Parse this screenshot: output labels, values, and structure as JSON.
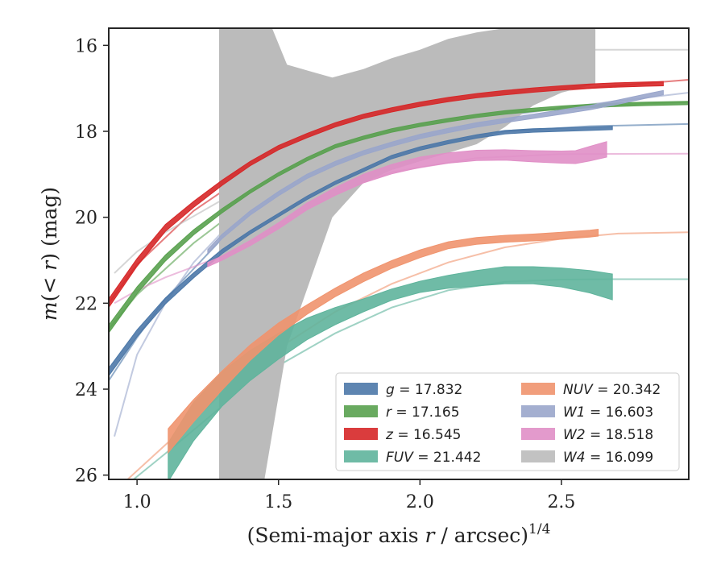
{
  "chart_data": {
    "type": "line",
    "xlabel": "(Semi-major axis r / arcsec)^{1/4}",
    "ylabel": "m(< r) (mag)",
    "xlim": [
      0.9,
      2.95
    ],
    "ylim": [
      26.1,
      15.6
    ],
    "y_inverted": true,
    "x_ticks": [
      "1.0",
      "1.5",
      "2.0",
      "2.5"
    ],
    "y_ticks": [
      "16",
      "18",
      "20",
      "22",
      "24",
      "26"
    ],
    "grid": false,
    "legend_position": "lower-right",
    "series": [
      {
        "name": "g = 17.832",
        "legend_name": "g",
        "legend_value": "17.832",
        "color": "#4C78A8",
        "ext_x": [
          0.9,
          1.0,
          1.1,
          1.3,
          1.5,
          1.7,
          1.9,
          2.1,
          2.3,
          2.6,
          2.95
        ],
        "ext_y": [
          23.8,
          22.8,
          21.9,
          20.5,
          19.6,
          19.0,
          18.5,
          18.2,
          18.0,
          17.88,
          17.83
        ],
        "x": [
          0.9,
          1.0,
          1.1,
          1.2,
          1.3,
          1.4,
          1.5,
          1.6,
          1.7,
          1.8,
          1.9,
          2.0,
          2.1,
          2.2,
          2.3,
          2.4,
          2.5,
          2.6,
          2.68
        ],
        "y": [
          23.6,
          22.7,
          21.95,
          21.35,
          20.8,
          20.35,
          19.95,
          19.55,
          19.2,
          18.9,
          18.6,
          18.4,
          18.25,
          18.12,
          18.02,
          17.98,
          17.96,
          17.94,
          17.92
        ],
        "band": [
          0.09,
          0.08,
          0.07,
          0.06,
          0.05,
          0.04,
          0.04,
          0.04,
          0.04,
          0.04,
          0.04,
          0.04,
          0.04,
          0.04,
          0.04,
          0.04,
          0.04,
          0.04,
          0.04
        ]
      },
      {
        "name": "r = 17.165",
        "legend_name": "r",
        "legend_value": "17.165",
        "color": "#59A14F",
        "ext_x": [
          0.9,
          1.0,
          1.2,
          1.4,
          1.6,
          1.8,
          2.0,
          2.2,
          2.5,
          2.8,
          2.95
        ],
        "ext_y": [
          22.6,
          21.8,
          20.6,
          19.6,
          18.9,
          18.35,
          17.95,
          17.7,
          17.45,
          17.35,
          17.32
        ],
        "x": [
          0.9,
          1.0,
          1.1,
          1.2,
          1.3,
          1.4,
          1.5,
          1.6,
          1.7,
          1.8,
          1.9,
          2.0,
          2.1,
          2.2,
          2.3,
          2.4,
          2.5,
          2.6,
          2.7,
          2.8,
          2.95
        ],
        "y": [
          22.6,
          21.7,
          20.95,
          20.35,
          19.85,
          19.4,
          19.0,
          18.65,
          18.35,
          18.15,
          17.98,
          17.85,
          17.74,
          17.64,
          17.56,
          17.5,
          17.45,
          17.41,
          17.38,
          17.36,
          17.34
        ],
        "band": [
          0.09,
          0.08,
          0.07,
          0.06,
          0.05,
          0.04,
          0.04,
          0.04,
          0.04,
          0.04,
          0.04,
          0.04,
          0.04,
          0.04,
          0.04,
          0.04,
          0.04,
          0.04,
          0.04,
          0.04,
          0.04
        ]
      },
      {
        "name": "z = 16.545",
        "legend_name": "z",
        "legend_value": "16.545",
        "color": "#D62728",
        "ext_x": [
          0.9,
          1.0,
          1.2,
          1.4,
          1.6,
          1.8,
          2.0,
          2.2,
          2.5,
          2.8,
          2.95
        ],
        "ext_y": [
          22.0,
          21.1,
          19.85,
          18.95,
          18.35,
          17.9,
          17.55,
          17.3,
          17.05,
          16.88,
          16.8
        ],
        "x": [
          0.9,
          1.0,
          1.1,
          1.2,
          1.3,
          1.4,
          1.5,
          1.6,
          1.7,
          1.8,
          1.9,
          2.0,
          2.1,
          2.2,
          2.3,
          2.4,
          2.5,
          2.6,
          2.7,
          2.8,
          2.86
        ],
        "y": [
          22.0,
          21.05,
          20.25,
          19.7,
          19.2,
          18.75,
          18.38,
          18.1,
          17.85,
          17.65,
          17.5,
          17.37,
          17.26,
          17.17,
          17.1,
          17.04,
          16.99,
          16.95,
          16.92,
          16.9,
          16.89
        ],
        "band": [
          0.1,
          0.09,
          0.08,
          0.07,
          0.06,
          0.05,
          0.05,
          0.05,
          0.05,
          0.05,
          0.05,
          0.05,
          0.05,
          0.05,
          0.05,
          0.05,
          0.05,
          0.05,
          0.05,
          0.05,
          0.05
        ]
      },
      {
        "name": "FUV = 21.442",
        "legend_name": "FUV",
        "legend_value": "21.442",
        "color": "#5FB49C",
        "ext_x": [
          0.95,
          1.1,
          1.3,
          1.5,
          1.7,
          1.9,
          2.1,
          2.3,
          2.5,
          2.7,
          2.95
        ],
        "ext_y": [
          26.3,
          25.5,
          24.4,
          23.45,
          22.7,
          22.1,
          21.7,
          21.5,
          21.45,
          21.44,
          21.44
        ],
        "x": [
          1.11,
          1.2,
          1.3,
          1.4,
          1.5,
          1.6,
          1.7,
          1.8,
          1.9,
          2.0,
          2.1,
          2.2,
          2.3,
          2.4,
          2.5,
          2.6,
          2.68
        ],
        "y": [
          25.7,
          24.75,
          24.0,
          23.45,
          23.0,
          22.6,
          22.3,
          22.05,
          21.8,
          21.62,
          21.5,
          21.42,
          21.35,
          21.35,
          21.4,
          21.5,
          21.62
        ],
        "band": [
          0.45,
          0.45,
          0.4,
          0.35,
          0.3,
          0.25,
          0.2,
          0.15,
          0.13,
          0.13,
          0.15,
          0.18,
          0.2,
          0.2,
          0.22,
          0.26,
          0.3
        ]
      },
      {
        "name": "NUV = 20.342",
        "legend_name": "NUV",
        "legend_value": "20.342",
        "color": "#F0946E",
        "ext_x": [
          0.95,
          1.1,
          1.3,
          1.5,
          1.7,
          1.9,
          2.1,
          2.3,
          2.5,
          2.7,
          2.95
        ],
        "ext_y": [
          26.2,
          25.3,
          24.1,
          23.05,
          22.2,
          21.55,
          21.05,
          20.7,
          20.5,
          20.38,
          20.35
        ],
        "x": [
          1.11,
          1.2,
          1.3,
          1.4,
          1.5,
          1.6,
          1.7,
          1.8,
          1.9,
          2.0,
          2.1,
          2.2,
          2.3,
          2.4,
          2.5,
          2.6,
          2.63
        ],
        "y": [
          25.2,
          24.5,
          23.8,
          23.15,
          22.6,
          22.15,
          21.75,
          21.4,
          21.1,
          20.85,
          20.65,
          20.55,
          20.5,
          20.47,
          20.43,
          20.38,
          20.36
        ],
        "band": [
          0.28,
          0.26,
          0.22,
          0.18,
          0.14,
          0.11,
          0.1,
          0.1,
          0.09,
          0.09,
          0.08,
          0.08,
          0.08,
          0.08,
          0.08,
          0.08,
          0.08
        ]
      },
      {
        "name": "W1 = 16.603",
        "legend_name": "W1",
        "legend_value": "16.603",
        "color": "#9AA6CB",
        "ext_x": [
          0.92,
          1.0,
          1.1,
          1.2,
          1.3,
          1.4,
          1.5,
          1.7,
          1.9,
          2.2,
          2.5,
          2.95
        ],
        "ext_y": [
          25.1,
          23.2,
          22.0,
          21.05,
          20.35,
          19.8,
          19.35,
          18.7,
          18.2,
          17.75,
          17.45,
          17.1
        ],
        "x": [
          1.25,
          1.3,
          1.4,
          1.5,
          1.6,
          1.7,
          1.8,
          1.9,
          2.0,
          2.1,
          2.2,
          2.3,
          2.4,
          2.5,
          2.6,
          2.7,
          2.8,
          2.86
        ],
        "y": [
          20.8,
          20.45,
          19.9,
          19.45,
          19.05,
          18.75,
          18.5,
          18.3,
          18.12,
          17.98,
          17.85,
          17.75,
          17.65,
          17.55,
          17.45,
          17.32,
          17.18,
          17.1
        ],
        "band": [
          0.05,
          0.05,
          0.05,
          0.05,
          0.05,
          0.05,
          0.05,
          0.05,
          0.05,
          0.05,
          0.05,
          0.05,
          0.05,
          0.05,
          0.05,
          0.05,
          0.05,
          0.05
        ]
      },
      {
        "name": "W2 = 18.518",
        "legend_name": "W2",
        "legend_value": "18.518",
        "color": "#E08FC6",
        "ext_x": [
          0.92,
          1.0,
          1.1,
          1.2,
          1.3,
          1.5,
          1.7,
          1.9,
          2.2,
          2.5,
          2.95
        ],
        "ext_y": [
          22.0,
          21.7,
          21.4,
          21.15,
          20.9,
          20.1,
          19.4,
          18.95,
          18.62,
          18.53,
          18.52
        ],
        "x": [
          1.25,
          1.3,
          1.4,
          1.5,
          1.6,
          1.7,
          1.8,
          1.9,
          2.0,
          2.1,
          2.2,
          2.3,
          2.4,
          2.5,
          2.55,
          2.6,
          2.66
        ],
        "y": [
          21.1,
          20.95,
          20.6,
          20.2,
          19.75,
          19.4,
          19.1,
          18.88,
          18.72,
          18.62,
          18.56,
          18.55,
          18.58,
          18.6,
          18.6,
          18.52,
          18.42
        ],
        "band": [
          0.05,
          0.05,
          0.06,
          0.07,
          0.08,
          0.09,
          0.1,
          0.11,
          0.12,
          0.12,
          0.12,
          0.12,
          0.13,
          0.14,
          0.15,
          0.17,
          0.18
        ]
      },
      {
        "name": "W4 = 16.099",
        "legend_name": "W4",
        "legend_value": "16.099",
        "color": "#BBBBBB",
        "ext_x": [
          0.92,
          1.0,
          1.1,
          1.3,
          1.5,
          1.7,
          1.9,
          2.1,
          2.3,
          2.5,
          2.6,
          2.95
        ],
        "ext_y": [
          21.3,
          20.8,
          20.35,
          19.6,
          18.7,
          18.0,
          17.5,
          17.1,
          16.75,
          16.3,
          16.1,
          16.1
        ],
        "band_x": [
          1.29,
          1.44,
          1.53,
          1.69,
          1.8,
          1.9,
          2.0,
          2.1,
          2.2,
          2.3,
          2.4,
          2.5,
          2.62
        ],
        "band_upper": [
          15.0,
          15.0,
          16.45,
          16.75,
          16.55,
          16.3,
          16.1,
          15.85,
          15.7,
          15.6,
          15.6,
          15.6,
          15.6
        ],
        "band_lower": [
          27.0,
          26.5,
          23.0,
          20.0,
          19.2,
          18.9,
          18.7,
          18.5,
          18.3,
          17.9,
          17.4,
          17.1,
          16.9
        ]
      }
    ]
  }
}
